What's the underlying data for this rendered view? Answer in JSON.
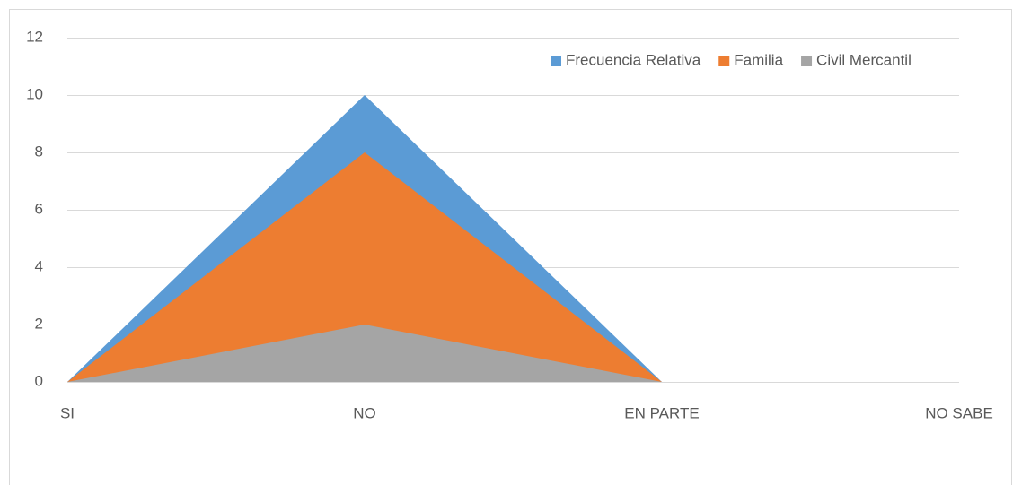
{
  "chart_data": {
    "type": "area",
    "categories": [
      "SI",
      "NO",
      "EN PARTE",
      "NO SABE"
    ],
    "series": [
      {
        "name": "Frecuencia Relativa",
        "color": "#5b9bd5",
        "values": [
          0,
          10,
          0,
          0
        ]
      },
      {
        "name": "Familia",
        "color": "#ed7d31",
        "values": [
          0,
          8,
          0,
          0
        ]
      },
      {
        "name": "Civil Mercantil",
        "color": "#a5a5a5",
        "values": [
          0,
          2,
          0,
          0
        ]
      }
    ],
    "ylim": [
      0,
      12
    ],
    "yticks": [
      0,
      2,
      4,
      6,
      8,
      10,
      12
    ],
    "grid": true,
    "legend": "top-right"
  }
}
